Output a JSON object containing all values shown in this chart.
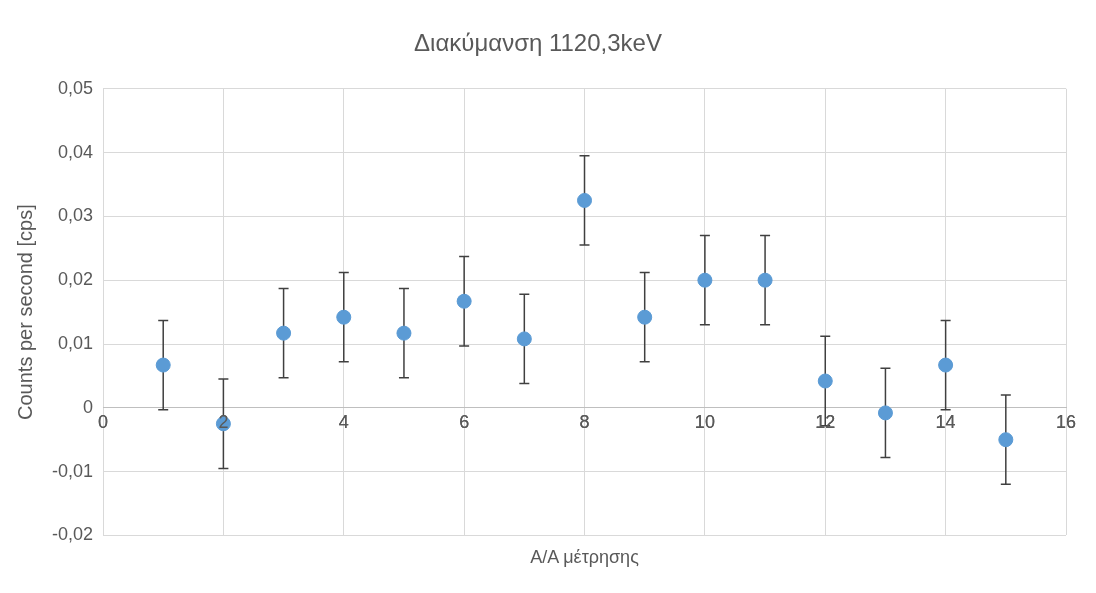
{
  "chart_data": {
    "type": "scatter",
    "title": "Διακύμανση 1120,3keV",
    "xlabel": "Α/Α μέτρησης",
    "ylabel": "Counts per second [cps]",
    "x": [
      1,
      2,
      3,
      4,
      5,
      6,
      7,
      8,
      9,
      10,
      11,
      12,
      13,
      14,
      15
    ],
    "series": [
      {
        "color": "#5b9bd5",
        "values": [
          0.0067,
          -0.0025,
          0.0117,
          0.0142,
          0.0117,
          0.0167,
          0.0108,
          0.0325,
          0.0142,
          0.02,
          0.02,
          0.0042,
          -0.0008,
          0.0067,
          -0.005
        ],
        "errors": [
          0.007,
          0.007,
          0.007,
          0.007,
          0.007,
          0.007,
          0.007,
          0.007,
          0.007,
          0.007,
          0.007,
          0.007,
          0.007,
          0.007,
          0.007
        ]
      }
    ],
    "xlim": [
      0,
      16
    ],
    "xticks": [
      {
        "value": 0,
        "label": "0"
      },
      {
        "value": 2,
        "label": "2"
      },
      {
        "value": 4,
        "label": "4"
      },
      {
        "value": 6,
        "label": "6"
      },
      {
        "value": 8,
        "label": "8"
      },
      {
        "value": 10,
        "label": "10"
      },
      {
        "value": 12,
        "label": "12"
      },
      {
        "value": 14,
        "label": "14"
      },
      {
        "value": 16,
        "label": "16"
      }
    ],
    "ylim": [
      -0.02,
      0.05
    ],
    "yticks": [
      {
        "value": -0.02,
        "label": "-0,02"
      },
      {
        "value": -0.01,
        "label": "-0,01"
      },
      {
        "value": 0,
        "label": "0"
      },
      {
        "value": 0.01,
        "label": "0,01"
      },
      {
        "value": 0.02,
        "label": "0,02"
      },
      {
        "value": 0.03,
        "label": "0,03"
      },
      {
        "value": 0.04,
        "label": "0,04"
      },
      {
        "value": 0.05,
        "label": "0,05"
      }
    ],
    "grid": true,
    "marker": "circle",
    "legend": false
  }
}
